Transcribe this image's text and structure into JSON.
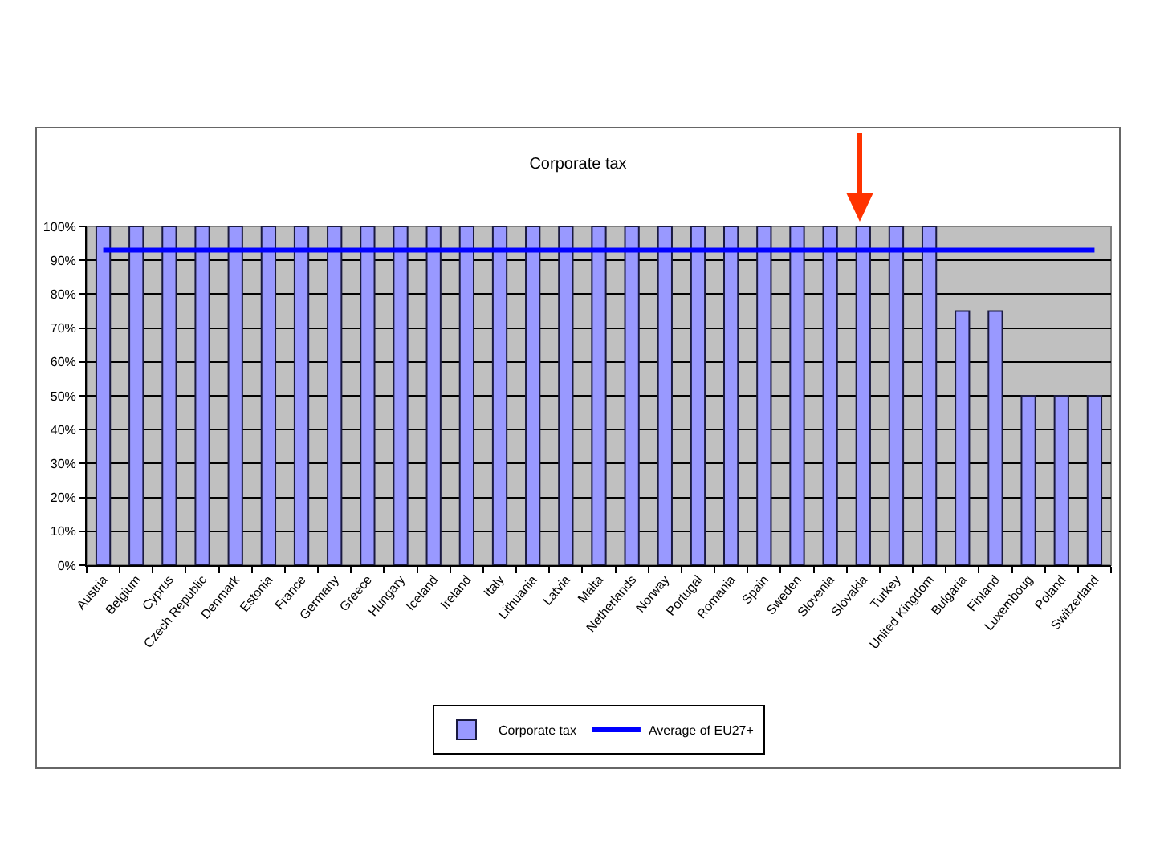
{
  "chart_data": {
    "type": "bar",
    "title": "Corporate tax",
    "categories": [
      "Austria",
      "Belgium",
      "Cyprus",
      "Czech Republic",
      "Denmark",
      "Estonia",
      "France",
      "Germany",
      "Greece",
      "Hungary",
      "Iceland",
      "Ireland",
      "Italy",
      "Lithuania",
      "Latvia",
      "Malta",
      "Netherlands",
      "Norway",
      "Portugal",
      "Romania",
      "Spain",
      "Sweden",
      "Slovenia",
      "Slovakia",
      "Turkey",
      "United Kingdom",
      "Bulgaria",
      "Finland",
      "Luxemboug",
      "Poland",
      "Switzerland"
    ],
    "series": [
      {
        "name": "Corporate tax",
        "color": "#9999ff",
        "values": [
          100,
          100,
          100,
          100,
          100,
          100,
          100,
          100,
          100,
          100,
          100,
          100,
          100,
          100,
          100,
          100,
          100,
          100,
          100,
          100,
          100,
          100,
          100,
          100,
          100,
          100,
          75,
          75,
          50,
          50,
          50
        ]
      },
      {
        "name": "Average of EU27+",
        "type": "line",
        "color": "#0000ff",
        "values": [
          93,
          93,
          93,
          93,
          93,
          93,
          93,
          93,
          93,
          93,
          93,
          93,
          93,
          93,
          93,
          93,
          93,
          93,
          93,
          93,
          93,
          93,
          93,
          93,
          93,
          93,
          93,
          93,
          93,
          93,
          93
        ]
      }
    ],
    "ylim": [
      0,
      100
    ],
    "yticks": [
      {
        "value": 0,
        "label": "0%"
      },
      {
        "value": 10,
        "label": "10%"
      },
      {
        "value": 20,
        "label": "20%"
      },
      {
        "value": 30,
        "label": "30%"
      },
      {
        "value": 40,
        "label": "40%"
      },
      {
        "value": 50,
        "label": "50%"
      },
      {
        "value": 60,
        "label": "60%"
      },
      {
        "value": 70,
        "label": "70%"
      },
      {
        "value": 80,
        "label": "80%"
      },
      {
        "value": 90,
        "label": "90%"
      },
      {
        "value": 100,
        "label": "100%"
      }
    ],
    "grid": "y",
    "legend": "bottom"
  }
}
